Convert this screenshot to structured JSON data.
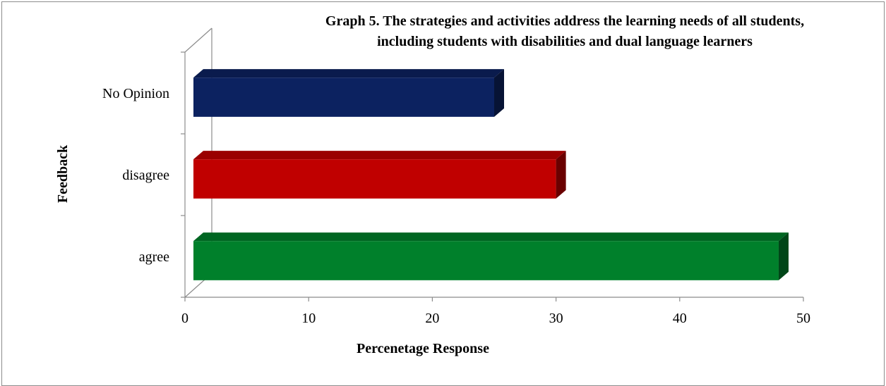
{
  "chart_data": {
    "type": "bar",
    "orientation": "horizontal",
    "style": "3d",
    "title": "Graph 5. The strategies and activities address the learning needs of all students, including students with disabilities and dual language learners",
    "title_lines": [
      "Graph 5. The strategies and activities address the learning needs of all students,",
      "including students with disabilities and dual language learners"
    ],
    "xlabel": "Percenetage Response",
    "ylabel": "Feedback",
    "xlim": [
      0,
      50
    ],
    "xticks": [
      0,
      10,
      20,
      30,
      40,
      50
    ],
    "categories": [
      "agree",
      "disagree",
      "No Opinion"
    ],
    "values": [
      48,
      30,
      25
    ],
    "colors": [
      "#00802b",
      "#c00000",
      "#0c2260"
    ],
    "grid": false,
    "legend": "none"
  }
}
